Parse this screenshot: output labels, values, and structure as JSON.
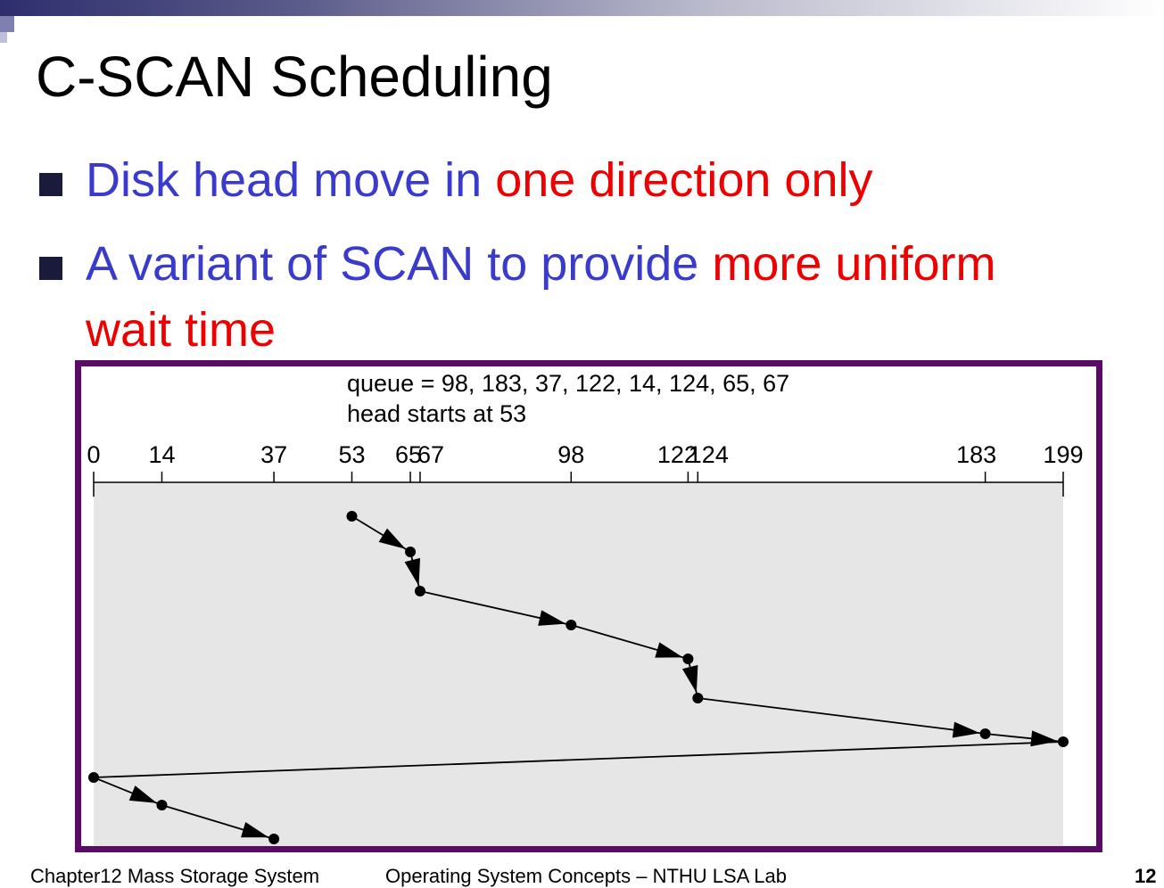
{
  "slide": {
    "title": "C-SCAN Scheduling",
    "bullets": [
      {
        "part1": "Disk head move in ",
        "part2": "one direction only"
      },
      {
        "part1": "A variant of SCAN to provide ",
        "part2": "more uniform",
        "part3": "wait time"
      }
    ]
  },
  "diagram": {
    "queue_label": "queue = 98, 183, 37, 122, 14, 124, 65, 67",
    "head_label": "head starts at 53",
    "tick_values": [
      0,
      14,
      37,
      53,
      65,
      67,
      98,
      122,
      124,
      183,
      199
    ],
    "tick_labels": [
      "0",
      "14",
      "37",
      "53",
      "65",
      "67",
      "98",
      "122",
      "124",
      "183",
      "199"
    ],
    "path": [
      53,
      65,
      67,
      98,
      122,
      124,
      183,
      199,
      0,
      14,
      37
    ]
  },
  "footer": {
    "chapter": "Chapter12  Mass Storage System",
    "course": "Operating System Concepts – NTHU LSA Lab",
    "page": "12"
  },
  "colors": {
    "frame": "#5c0a68",
    "text_blue": "#3a3acc",
    "text_red": "#ee0000"
  }
}
